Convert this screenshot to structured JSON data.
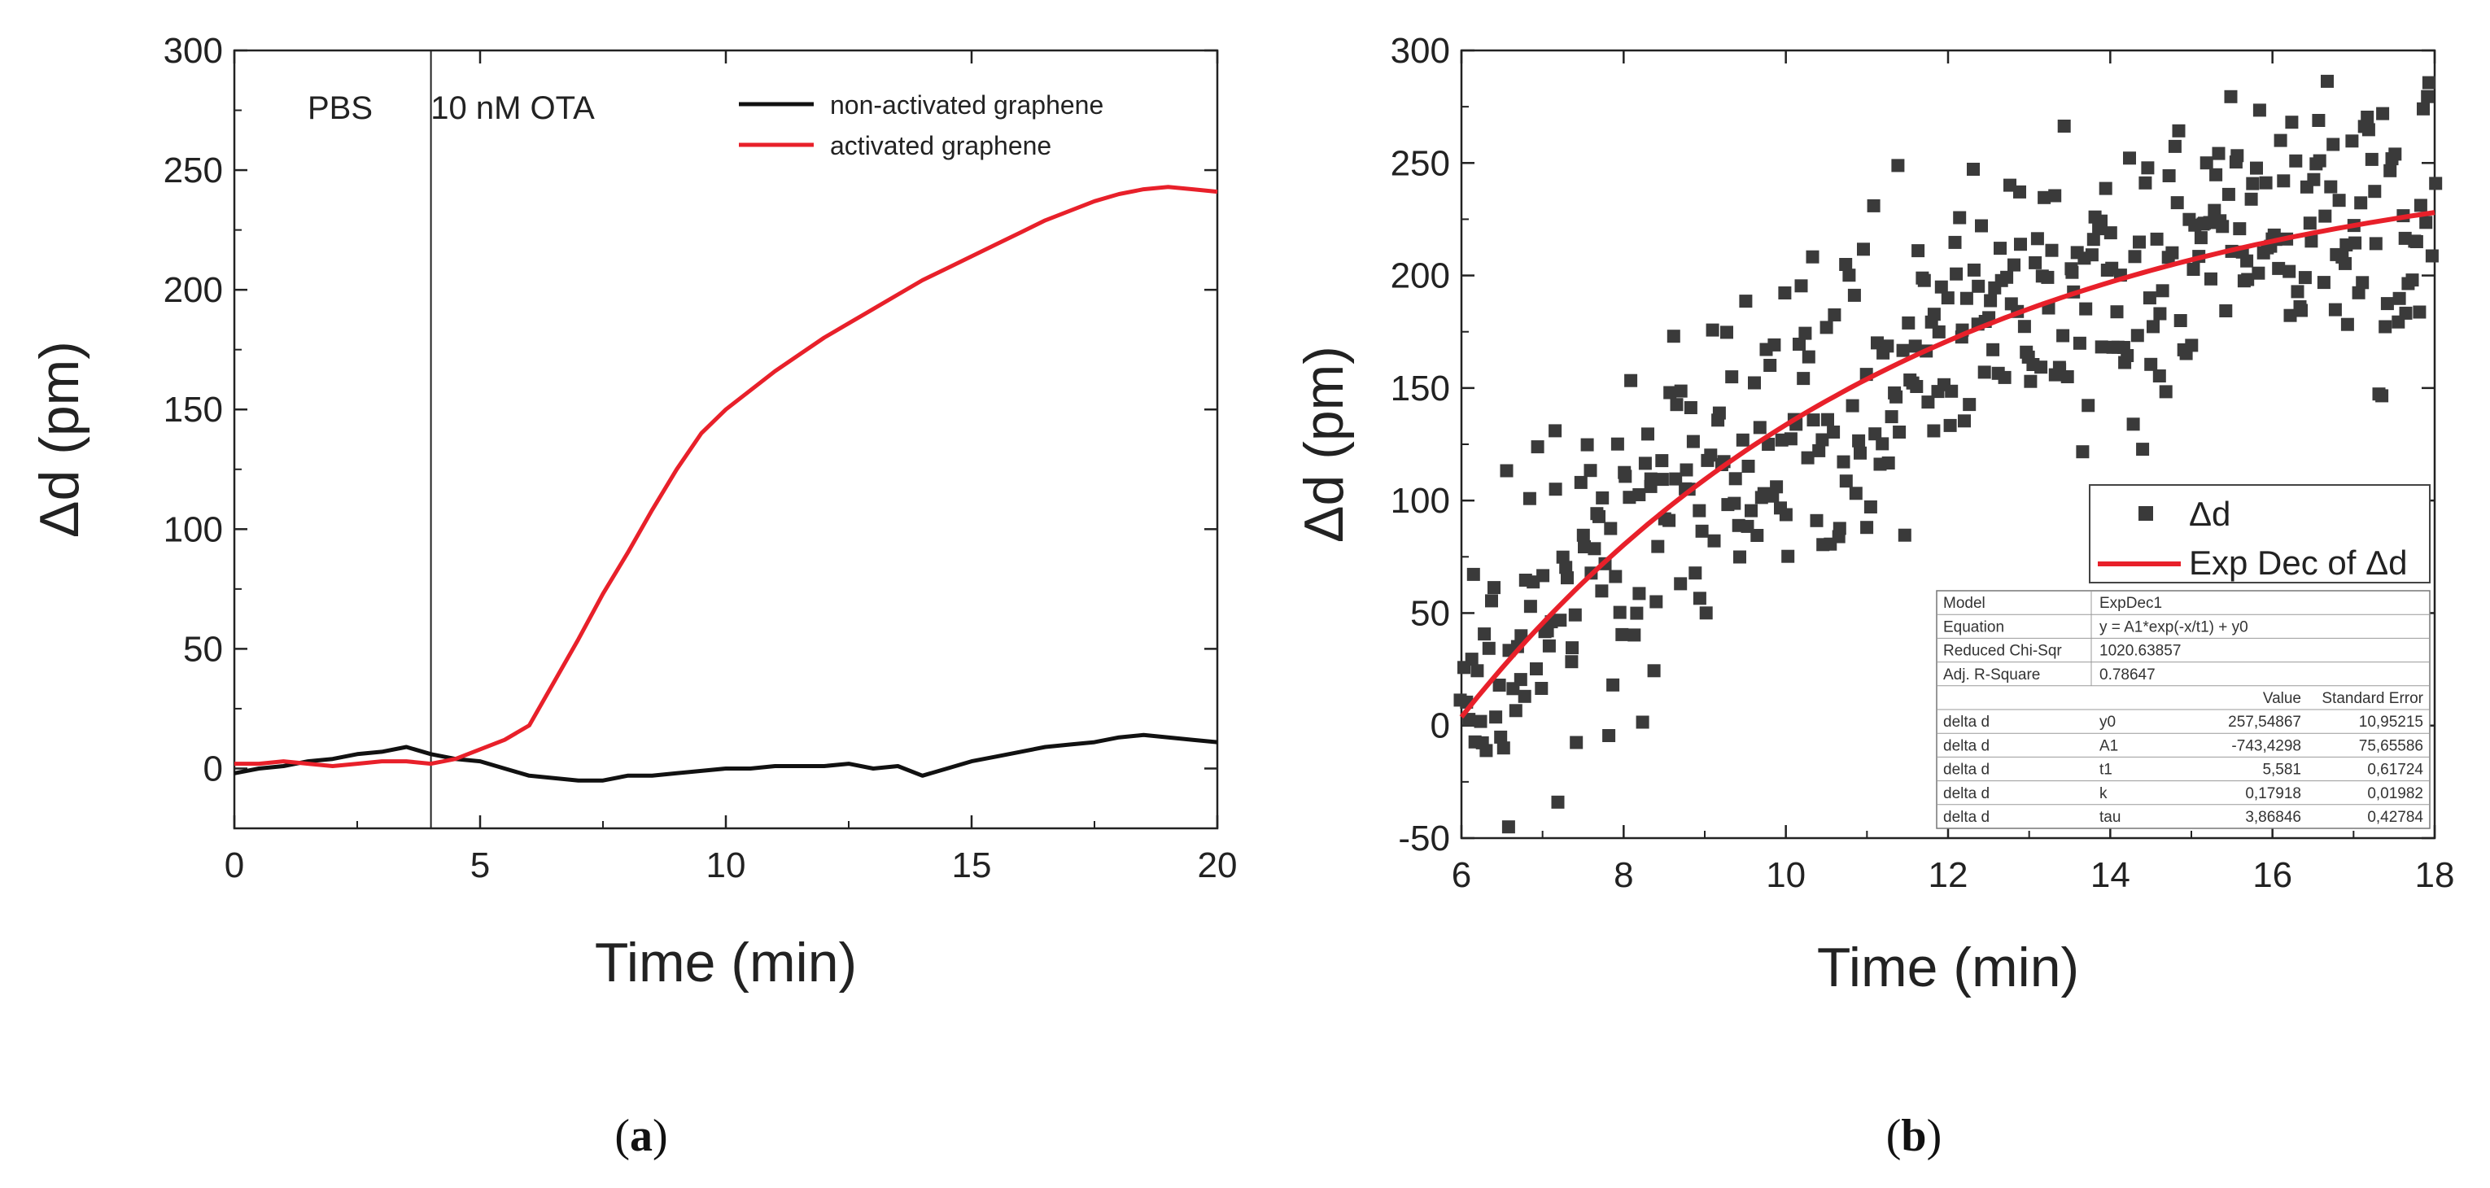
{
  "chart_data": [
    {
      "panel": "a",
      "type": "line",
      "caption": "a",
      "xlabel": "Time (min)",
      "ylabel": "Δd (pm)",
      "xlim": [
        0,
        20
      ],
      "ylim": [
        -25,
        300
      ],
      "xticks": [
        0,
        5,
        10,
        15,
        20
      ],
      "yticks": [
        0,
        50,
        100,
        150,
        200,
        250,
        300
      ],
      "legend_position": "top-right",
      "vline": {
        "x": 4
      },
      "annotations": [
        "PBS",
        "10 nM OTA"
      ],
      "series": [
        {
          "name": "non-activated graphene",
          "color": "#111111",
          "x": [
            0,
            0.5,
            1,
            1.5,
            2,
            2.5,
            3,
            3.5,
            4,
            4.5,
            5,
            5.5,
            6,
            6.5,
            7,
            7.5,
            8,
            8.5,
            9,
            9.5,
            10,
            10.5,
            11,
            11.5,
            12,
            12.5,
            13,
            13.5,
            14,
            14.5,
            15,
            15.5,
            16,
            16.5,
            17,
            17.5,
            18,
            18.5,
            19,
            19.5,
            20
          ],
          "y": [
            -2,
            0,
            1,
            3,
            4,
            6,
            7,
            9,
            6,
            4,
            3,
            0,
            -3,
            -4,
            -5,
            -5,
            -3,
            -3,
            -2,
            -1,
            0,
            0,
            1,
            1,
            1,
            2,
            0,
            1,
            -3,
            0,
            3,
            5,
            7,
            9,
            10,
            11,
            13,
            14,
            13,
            12,
            11
          ]
        },
        {
          "name": "activated graphene",
          "color": "#e8202a",
          "x": [
            0,
            0.5,
            1,
            1.5,
            2,
            2.5,
            3,
            3.5,
            4,
            4.5,
            5,
            5.5,
            6,
            6.5,
            7,
            7.5,
            8,
            8.5,
            9,
            9.5,
            10,
            10.5,
            11,
            11.5,
            12,
            12.5,
            13,
            13.5,
            14,
            14.5,
            15,
            15.5,
            16,
            16.5,
            17,
            17.5,
            18,
            18.5,
            19,
            19.5,
            20
          ],
          "y": [
            2,
            2,
            3,
            2,
            1,
            2,
            3,
            3,
            2,
            4,
            8,
            12,
            18,
            36,
            54,
            73,
            90,
            108,
            125,
            140,
            150,
            158,
            166,
            173,
            180,
            186,
            192,
            198,
            204,
            209,
            214,
            219,
            224,
            229,
            233,
            237,
            240,
            242,
            243,
            242,
            241
          ]
        }
      ]
    },
    {
      "panel": "b",
      "type": "scatter",
      "caption": "b",
      "xlabel": "Time (min)",
      "ylabel": "Δd (pm)",
      "xlim": [
        6,
        18
      ],
      "ylim": [
        -50,
        300
      ],
      "xticks": [
        6,
        8,
        10,
        12,
        14,
        16,
        18
      ],
      "yticks": [
        -50,
        0,
        50,
        100,
        150,
        200,
        250,
        300
      ],
      "legend_position": "bottom-right",
      "series": [
        {
          "name": "Δd",
          "color": "#3a3a3a",
          "marker": "square",
          "n_points": 420
        },
        {
          "name": "Exp Dec of Δd",
          "color": "#e8202a",
          "fit": {
            "y0": 257.54867,
            "A1": -743.4298,
            "t1": 5.581
          }
        }
      ],
      "fit_table": {
        "rows": [
          [
            "Model",
            "",
            "ExpDec1",
            ""
          ],
          [
            "Equation",
            "",
            "y = A1*exp(-x/t1) + y0",
            ""
          ],
          [
            "Reduced Chi-Sqr",
            "",
            "1020.63857",
            ""
          ],
          [
            "Adj. R-Square",
            "",
            "0.78647",
            ""
          ],
          [
            "",
            "",
            "Value",
            "Standard Error"
          ],
          [
            "delta d",
            "y0",
            "257,54867",
            "10,95215"
          ],
          [
            "delta d",
            "A1",
            "-743,4298",
            "75,65586"
          ],
          [
            "delta d",
            "t1",
            "5,581",
            "0,61724"
          ],
          [
            "delta d",
            "k",
            "0,17918",
            "0,01982"
          ],
          [
            "delta d",
            "tau",
            "3,86846",
            "0,42784"
          ]
        ]
      }
    }
  ]
}
